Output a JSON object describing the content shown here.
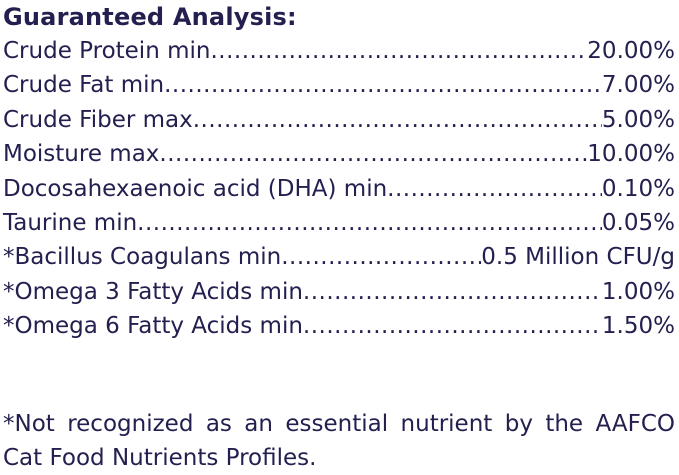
{
  "title": "Guaranteed Analysis:",
  "rows": [
    {
      "label": "Crude Protein min",
      "value": "20.00%"
    },
    {
      "label": "Crude Fat min",
      "value": "7.00%"
    },
    {
      "label": "Crude Fiber max",
      "value": "5.00%"
    },
    {
      "label": "Moisture max",
      "value": "10.00%"
    },
    {
      "label": "Docosahexaenoic acid (DHA) min",
      "value": "0.10%"
    },
    {
      "label": "Taurine min",
      "value": "0.05%"
    },
    {
      "label": "*Bacillus Coagulans min",
      "value": "0.5 Million CFU/g"
    },
    {
      "label": "*Omega 3 Fatty Acids min",
      "value": "1.00%"
    },
    {
      "label": "*Omega 6 Fatty Acids min",
      "value": "1.50%"
    }
  ],
  "footnote": "*Not recognized as an essential nutrient by the AAFCO Cat Food Nutrients Profiles.",
  "colors": {
    "text": "#23204f"
  }
}
